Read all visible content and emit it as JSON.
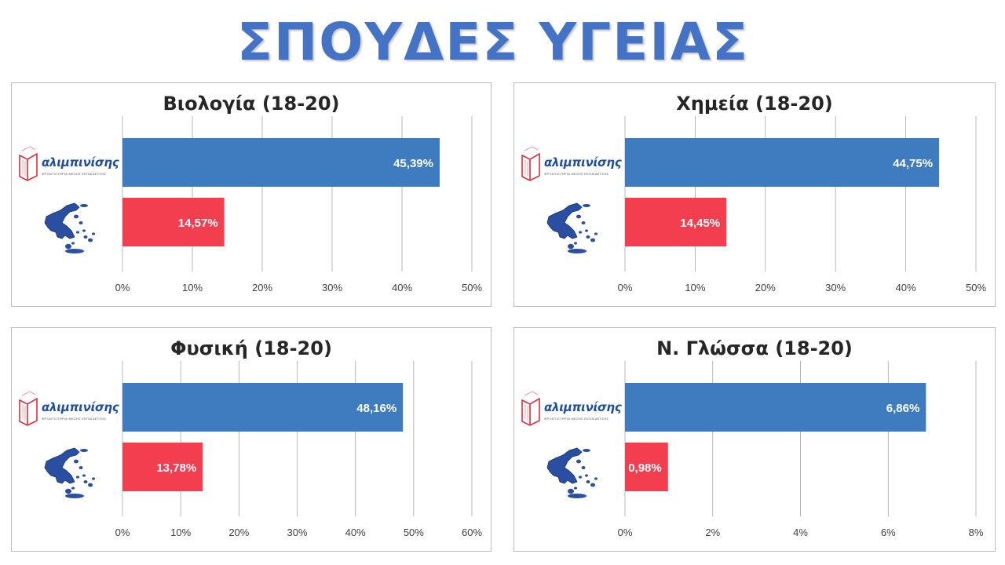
{
  "page": {
    "title": "ΣΠΟΥΔΕΣ ΥΓΕΙΑΣ"
  },
  "logo": {
    "text": "αλιμπινίσης",
    "subtitle": "ΦΡΟΝΤΙΣΤΗΡΙΑ ΜΕΣΗΣ ΕΚΠΑΙΔΕΥΣΗΣ"
  },
  "colors": {
    "title": "#4472C4",
    "series_school": "#3F7CBF",
    "series_national": "#F23E4E",
    "grid": "#a6a6a6",
    "axis_text": "#404040",
    "logo_text": "#1F4E9E",
    "logo_book": "#D9303E",
    "map": "#2B4FA0"
  },
  "chart_data": [
    {
      "type": "bar",
      "title": "Βιολογία (18-20)",
      "categories": [
        "school",
        "national"
      ],
      "category_icons": [
        "alimpinisis-logo",
        "greece-map-icon"
      ],
      "values": [
        45.39,
        14.57
      ],
      "value_labels": [
        "45,39%",
        "14,57%"
      ],
      "xlim": [
        0,
        50
      ],
      "ticks": [
        "0%",
        "10%",
        "20%",
        "30%",
        "40%",
        "50%"
      ],
      "grid": true,
      "legend": "none"
    },
    {
      "type": "bar",
      "title": "Χημεία (18-20)",
      "categories": [
        "school",
        "national"
      ],
      "category_icons": [
        "alimpinisis-logo",
        "greece-map-icon"
      ],
      "values": [
        44.75,
        14.45
      ],
      "value_labels": [
        "44,75%",
        "14,45%"
      ],
      "xlim": [
        0,
        50
      ],
      "ticks": [
        "0%",
        "10%",
        "20%",
        "30%",
        "40%",
        "50%"
      ],
      "grid": true,
      "legend": "none"
    },
    {
      "type": "bar",
      "title": "Φυσική (18-20)",
      "categories": [
        "school",
        "national"
      ],
      "category_icons": [
        "alimpinisis-logo",
        "greece-map-icon"
      ],
      "values": [
        48.16,
        13.78
      ],
      "value_labels": [
        "48,16%",
        "13,78%"
      ],
      "xlim": [
        0,
        60
      ],
      "ticks": [
        "0%",
        "10%",
        "20%",
        "30%",
        "40%",
        "50%",
        "60%"
      ],
      "grid": true,
      "legend": "none"
    },
    {
      "type": "bar",
      "title": "Ν. Γλώσσα (18-20)",
      "categories": [
        "school",
        "national"
      ],
      "category_icons": [
        "alimpinisis-logo",
        "greece-map-icon"
      ],
      "values": [
        6.86,
        0.98
      ],
      "value_labels": [
        "6,86%",
        "0,98%"
      ],
      "xlim": [
        0,
        8
      ],
      "ticks": [
        "0%",
        "2%",
        "4%",
        "6%",
        "8%"
      ],
      "grid": true,
      "legend": "none"
    }
  ]
}
